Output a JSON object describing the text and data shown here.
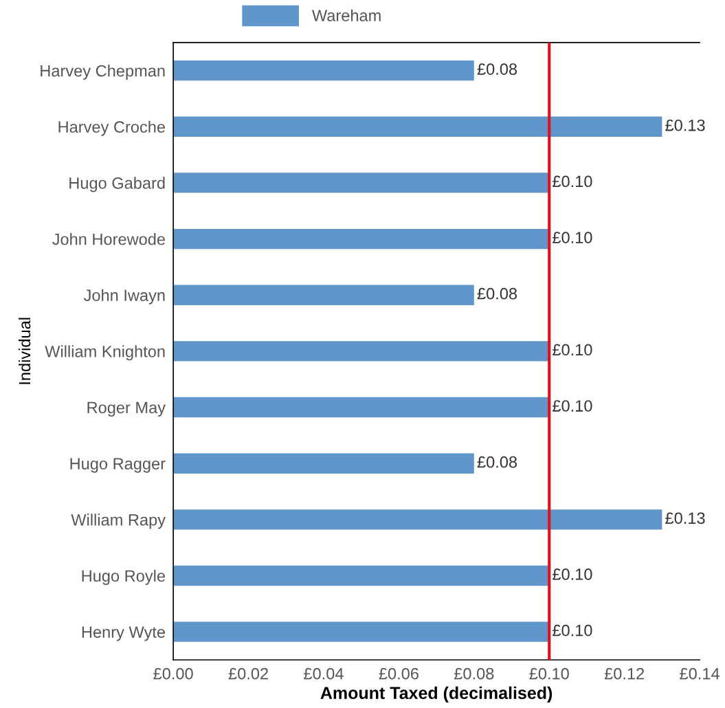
{
  "chart_data": {
    "type": "bar",
    "orientation": "horizontal",
    "xlabel": "Amount Taxed (decimalised)",
    "ylabel": "Individual",
    "categories": [
      "Harvey Chepman",
      "Harvey Croche",
      "Hugo Gabard",
      "John Horewode",
      "John Iwayn",
      "William Knighton",
      "Roger May",
      "Hugo Ragger",
      "William Rapy",
      "Hugo Royle",
      "Henry Wyte"
    ],
    "series": [
      {
        "name": "Wareham",
        "color": "#6096c9",
        "values": [
          0.08,
          0.13,
          0.1,
          0.1,
          0.08,
          0.1,
          0.1,
          0.08,
          0.13,
          0.1,
          0.1
        ],
        "value_labels": [
          "£0.08",
          "£0.13",
          "£0.10",
          "£0.10",
          "£0.08",
          "£0.10",
          "£0.10",
          "£0.08",
          "£0.13",
          "£0.10",
          "£0.10"
        ]
      }
    ],
    "xlim": [
      0,
      0.14
    ],
    "xticks": [
      {
        "value": 0,
        "label": "£0.00"
      },
      {
        "value": 0.02,
        "label": "£0.02"
      },
      {
        "value": 0.04,
        "label": "£0.04"
      },
      {
        "value": 0.06,
        "label": "£0.06"
      },
      {
        "value": 0.08,
        "label": "£0.08"
      },
      {
        "value": 0.1,
        "label": "£0.10"
      },
      {
        "value": 0.12,
        "label": "£0.12"
      },
      {
        "value": 0.14,
        "label": "£0.14"
      }
    ],
    "ref_lines": [
      {
        "axis": "x",
        "value": 0.1,
        "color": "#e3101a"
      }
    ],
    "legend": "top",
    "grid": false
  }
}
